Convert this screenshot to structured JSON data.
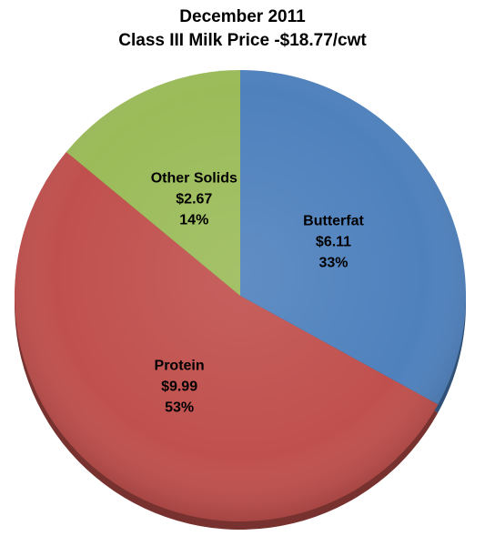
{
  "chart_data": {
    "type": "pie",
    "title": "December 2011",
    "subtitle": "Class III Milk Price -$18.77/cwt",
    "start_angle_deg": 0,
    "direction": "clockwise",
    "slices": [
      {
        "name": "Butterfat",
        "value_label": "$6.11",
        "value": 6.11,
        "percent_label": "33%",
        "percent": 33,
        "color": "#4f81bd"
      },
      {
        "name": "Protein",
        "value_label": "$9.99",
        "value": 9.99,
        "percent_label": "53%",
        "percent": 53,
        "color": "#c0504d"
      },
      {
        "name": "Other Solids",
        "value_label": "$2.67",
        "value": 2.67,
        "percent_label": "14%",
        "percent": 14,
        "color": "#9bbb59"
      }
    ]
  }
}
